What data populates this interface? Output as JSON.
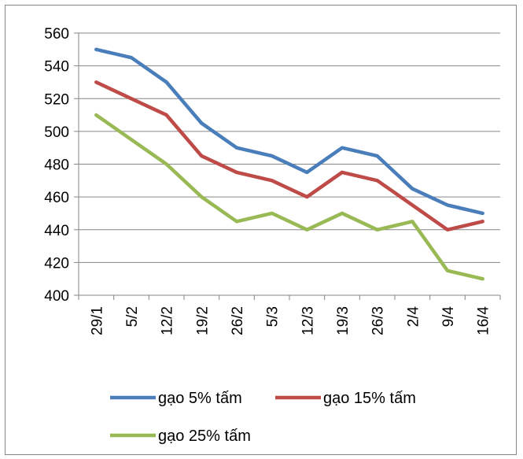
{
  "chart_data": {
    "type": "line",
    "categories": [
      "29/1",
      "5/2",
      "12/2",
      "19/2",
      "26/2",
      "5/3",
      "12/3",
      "19/3",
      "26/3",
      "2/4",
      "9/4",
      "16/4"
    ],
    "series": [
      {
        "name": "gạo 5% tấm",
        "color": "#4a7ebb",
        "values": [
          550,
          545,
          530,
          505,
          490,
          485,
          475,
          490,
          485,
          465,
          455,
          450
        ]
      },
      {
        "name": "gạo 15% tấm",
        "color": "#be4b48",
        "values": [
          530,
          520,
          510,
          485,
          475,
          470,
          460,
          475,
          470,
          455,
          440,
          445
        ]
      },
      {
        "name": "gạo 25% tấm",
        "color": "#98b954",
        "values": [
          510,
          495,
          480,
          460,
          445,
          450,
          440,
          450,
          440,
          445,
          415,
          410
        ]
      }
    ],
    "yticks": [
      400,
      420,
      440,
      460,
      480,
      500,
      520,
      540,
      560
    ],
    "ylim": [
      400,
      560
    ],
    "grid": true,
    "legend_position": "bottom"
  }
}
